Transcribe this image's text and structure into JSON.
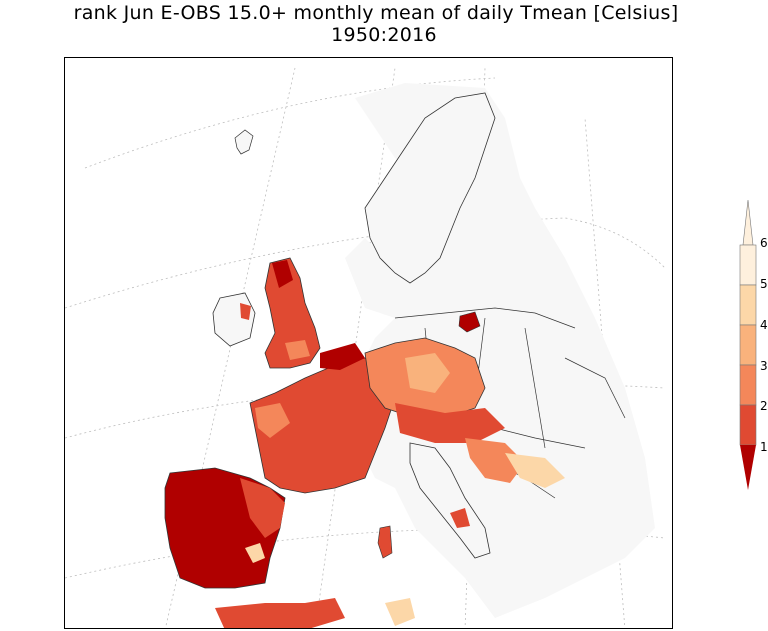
{
  "title": {
    "line1": "rank Jun E-OBS 15.0+ monthly mean of daily Tmean [Celsius]",
    "line2": "1950:2016"
  },
  "colors": {
    "rank1": "#b00000",
    "rank2": "#e04a32",
    "rank3": "#f4875a",
    "rank4": "#f9b27c",
    "rank5": "#fcd7a8",
    "rank6": "#fef0dd",
    "above": "#f7f7f7",
    "ocean": "#ffffff",
    "border": "#333333",
    "graticule": "#bdbdbd"
  },
  "legend": {
    "labels": [
      "6",
      "5",
      "4",
      "3",
      "2",
      "1"
    ]
  }
}
